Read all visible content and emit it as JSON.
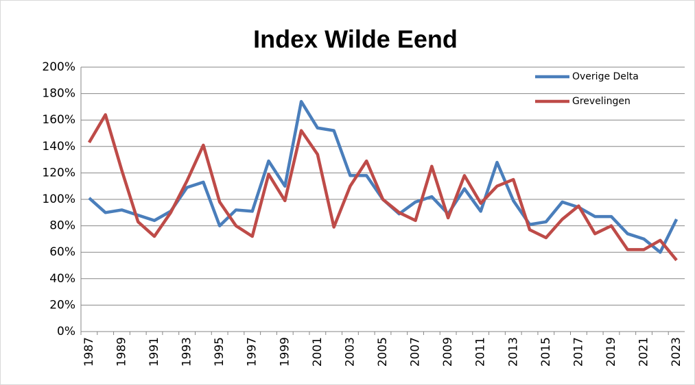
{
  "chart_data": {
    "type": "line",
    "title": "Index Wilde Eend",
    "categories": [
      "1987",
      null,
      "1989",
      null,
      "1991",
      null,
      "1993",
      null,
      "1995",
      null,
      "1997",
      null,
      "1999",
      null,
      "2001",
      null,
      "2003",
      null,
      "2005",
      null,
      "2007",
      null,
      "2009",
      null,
      "2011",
      null,
      "2013",
      null,
      "2015",
      null,
      "2017",
      null,
      "2019",
      null,
      "2021",
      null,
      "2023"
    ],
    "series": [
      {
        "name": "Overige Delta",
        "color": "#4a7ebb",
        "values": [
          101,
          90,
          92,
          88,
          84,
          91,
          109,
          113,
          80,
          92,
          91,
          129,
          110,
          174,
          154,
          152,
          118,
          118,
          100,
          89,
          98,
          102,
          89,
          108,
          91,
          128,
          99,
          81,
          83,
          98,
          94,
          87,
          87,
          74,
          70,
          60,
          85
        ]
      },
      {
        "name": "Grevelingen",
        "color": "#be4b48",
        "values": [
          143,
          164,
          122,
          83,
          72,
          90,
          114,
          141,
          98,
          80,
          72,
          119,
          99,
          152,
          134,
          79,
          110,
          129,
          100,
          90,
          84,
          125,
          86,
          118,
          97,
          110,
          115,
          77,
          71,
          85,
          95,
          74,
          80,
          62,
          62,
          69,
          54
        ]
      }
    ],
    "ylim": [
      0,
      200
    ],
    "yticks": [
      {
        "value": 0,
        "label": "0%"
      },
      {
        "value": 20,
        "label": "20%"
      },
      {
        "value": 40,
        "label": "40%"
      },
      {
        "value": 60,
        "label": "60%"
      },
      {
        "value": 80,
        "label": "80%"
      },
      {
        "value": 100,
        "label": "100%"
      },
      {
        "value": 120,
        "label": "120%"
      },
      {
        "value": 140,
        "label": "140%"
      },
      {
        "value": 160,
        "label": "160%"
      },
      {
        "value": 180,
        "label": "180%"
      },
      {
        "value": 200,
        "label": "200%"
      }
    ],
    "grid": true,
    "legend": "top-right"
  }
}
